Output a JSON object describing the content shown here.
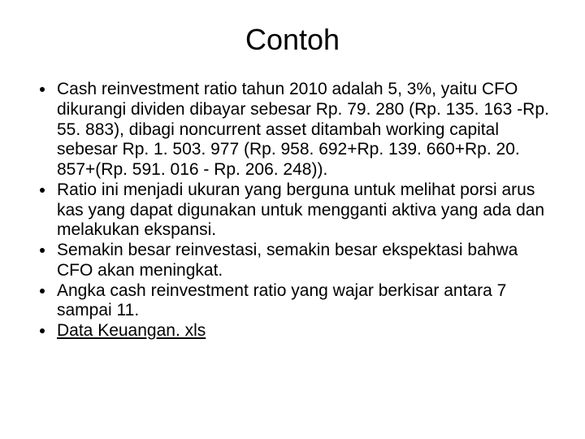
{
  "slide": {
    "title": "Contoh",
    "title_fontsize": 36,
    "body_fontsize": 21,
    "background_color": "#ffffff",
    "text_color": "#000000",
    "bullets": [
      "Cash reinvestment ratio tahun 2010 adalah 5, 3%, yaitu CFO dikurangi dividen dibayar sebesar Rp. 79. 280 (Rp. 135. 163 -Rp. 55. 883), dibagi noncurrent asset ditambah working capital sebesar Rp. 1. 503. 977 (Rp. 958. 692+Rp. 139. 660+Rp. 20. 857+(Rp. 591. 016 - Rp. 206. 248)).",
      "Ratio ini menjadi ukuran yang berguna untuk melihat porsi arus kas yang dapat digunakan untuk mengganti aktiva yang ada dan melakukan ekspansi.",
      "Semakin besar reinvestasi, semakin besar ekspektasi bahwa CFO akan meningkat.",
      "Angka cash reinvestment ratio yang wajar berkisar antara 7 sampai 11."
    ],
    "link_bullet": "Data Keuangan. xls"
  }
}
